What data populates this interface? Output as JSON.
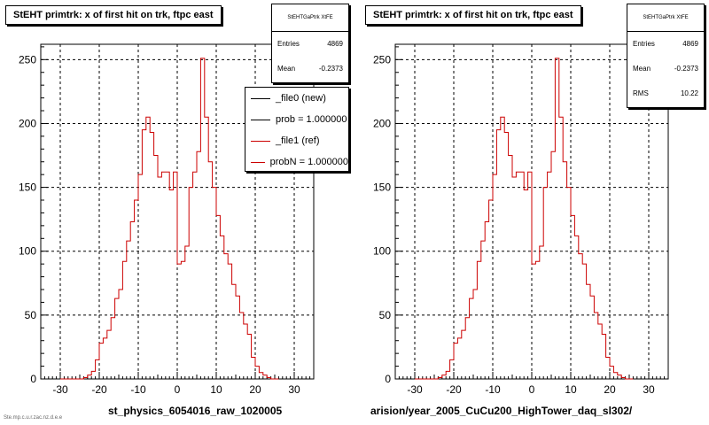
{
  "chart_data": [
    {
      "type": "histogram",
      "title": "StEHT primtrk: x of first hit on trk, ftpc east",
      "xlabel": "st_physics_6054016_raw_1020005",
      "ylabel": "",
      "xlim": [
        -35,
        35
      ],
      "ylim": [
        0,
        262
      ],
      "x_ticks": [
        -30,
        -20,
        -10,
        0,
        10,
        20,
        30
      ],
      "y_ticks": [
        0,
        50,
        100,
        150,
        200,
        250
      ],
      "grid": true,
      "bin_edges_start": -30,
      "bin_width": 1,
      "series": [
        {
          "name": "_file1 (ref)",
          "color": "#cc0000",
          "values": [
            0,
            0,
            0,
            0,
            0,
            0,
            1,
            3,
            6,
            15,
            28,
            32,
            38,
            48,
            63,
            70,
            92,
            108,
            123,
            140,
            160,
            195,
            205,
            193,
            175,
            158,
            162,
            162,
            148,
            162,
            90,
            92,
            104,
            150,
            162,
            178,
            251,
            205,
            170,
            150,
            128,
            112,
            98,
            90,
            74,
            65,
            52,
            43,
            35,
            17,
            10,
            5,
            3,
            1,
            0,
            0
          ]
        }
      ],
      "stats": {
        "header": "StEHTGaPtrk XtFE",
        "entries_label": "Entries",
        "entries": "4869",
        "mean_label": "Mean",
        "mean": "-0.2373"
      },
      "legend": [
        {
          "label": "_file0 (new)",
          "color": "#000000"
        },
        {
          "label": "prob = 1.000000",
          "color": "#000000"
        },
        {
          "label": "_file1 (ref)",
          "color": "#cc0000"
        },
        {
          "label": "probN = 1.000000",
          "color": "#cc0000"
        }
      ]
    },
    {
      "type": "histogram",
      "title": "StEHT primtrk: x of first hit on trk, ftpc east",
      "xlabel": "arision/year_2005_CuCu200_HighTower_daq_sl302/",
      "ylabel": "",
      "xlim": [
        -35,
        35
      ],
      "ylim": [
        0,
        262
      ],
      "x_ticks": [
        -30,
        -20,
        -10,
        0,
        10,
        20,
        30
      ],
      "y_ticks": [
        0,
        50,
        100,
        150,
        200,
        250
      ],
      "grid": true,
      "bin_edges_start": -30,
      "bin_width": 1,
      "series": [
        {
          "name": "",
          "color": "#cc0000",
          "values": [
            0,
            0,
            0,
            0,
            0,
            0,
            1,
            3,
            6,
            15,
            28,
            32,
            38,
            48,
            63,
            70,
            92,
            108,
            123,
            140,
            160,
            195,
            205,
            193,
            175,
            158,
            162,
            162,
            148,
            162,
            90,
            92,
            104,
            150,
            162,
            178,
            251,
            205,
            170,
            150,
            128,
            112,
            98,
            90,
            74,
            65,
            52,
            43,
            35,
            17,
            10,
            5,
            3,
            1,
            0,
            0
          ]
        }
      ],
      "stats": {
        "header": "StEHTGaPtrk XtFE",
        "entries_label": "Entries",
        "entries": "4869",
        "mean_label": "Mean",
        "mean": "-0.2373",
        "rms_label": "RMS",
        "rms": "10.22"
      }
    }
  ],
  "corner_note": "Ste.mp.c.u.r.zac.nz.d.e.e"
}
